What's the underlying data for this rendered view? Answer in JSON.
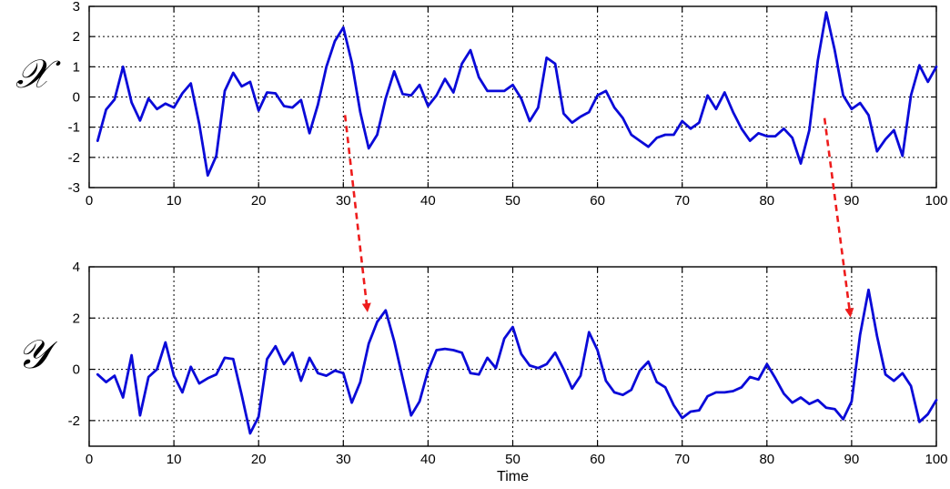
{
  "chart_data": [
    {
      "type": "line",
      "series_label": "𝒳",
      "xlabel": "",
      "ylabel": "",
      "xlim": [
        0,
        100
      ],
      "ylim": [
        -3,
        3
      ],
      "xticks": [
        0,
        10,
        20,
        30,
        40,
        50,
        60,
        70,
        80,
        90,
        100
      ],
      "yticks": [
        -3,
        -2,
        -1,
        0,
        1,
        2,
        3
      ],
      "grid": true,
      "color": "#0a0ad8",
      "x": [
        1,
        2,
        3,
        4,
        5,
        6,
        7,
        8,
        9,
        10,
        11,
        12,
        13,
        14,
        15,
        16,
        17,
        18,
        19,
        20,
        21,
        22,
        23,
        24,
        25,
        26,
        27,
        28,
        29,
        30,
        31,
        32,
        33,
        34,
        35,
        36,
        37,
        38,
        39,
        40,
        41,
        42,
        43,
        44,
        45,
        46,
        47,
        48,
        49,
        50,
        51,
        52,
        53,
        54,
        55,
        56,
        57,
        58,
        59,
        60,
        61,
        62,
        63,
        64,
        65,
        66,
        67,
        68,
        69,
        70,
        71,
        72,
        73,
        74,
        75,
        76,
        77,
        78,
        79,
        80,
        81,
        82,
        83,
        84,
        85,
        86,
        87,
        88,
        89,
        90,
        91,
        92,
        93,
        94,
        95,
        96,
        97,
        98,
        99,
        100
      ],
      "values": [
        -1.45,
        -0.42,
        -0.08,
        1.0,
        -0.18,
        -0.78,
        -0.05,
        -0.4,
        -0.22,
        -0.35,
        0.12,
        0.45,
        -0.9,
        -2.6,
        -1.95,
        0.2,
        0.8,
        0.35,
        0.5,
        -0.45,
        0.15,
        0.12,
        -0.3,
        -0.35,
        -0.1,
        -1.2,
        -0.25,
        1.0,
        1.85,
        2.3,
        1.15,
        -0.5,
        -1.7,
        -1.25,
        -0.05,
        0.85,
        0.1,
        0.05,
        0.4,
        -0.3,
        0.05,
        0.6,
        0.15,
        1.1,
        1.55,
        0.65,
        0.2,
        0.2,
        0.2,
        0.4,
        -0.05,
        -0.8,
        -0.35,
        1.3,
        1.1,
        -0.55,
        -0.85,
        -0.65,
        -0.5,
        0.05,
        0.2,
        -0.35,
        -0.7,
        -1.25,
        -1.45,
        -1.65,
        -1.35,
        -1.25,
        -1.25,
        -0.8,
        -1.05,
        -0.85,
        0.05,
        -0.4,
        0.15,
        -0.5,
        -1.05,
        -1.45,
        -1.2,
        -1.3,
        -1.3,
        -1.05,
        -1.35,
        -2.2,
        -1.1,
        1.2,
        2.8,
        1.55,
        0.05,
        -0.4,
        -0.2,
        -0.6,
        -1.8,
        -1.4,
        -1.1,
        -1.95,
        0.05,
        1.05,
        0.5,
        1.0
      ]
    },
    {
      "type": "line",
      "series_label": "𝒴",
      "xlabel": "Time",
      "ylabel": "",
      "xlim": [
        0,
        100
      ],
      "ylim": [
        -3,
        4
      ],
      "xticks": [
        0,
        10,
        20,
        30,
        40,
        50,
        60,
        70,
        80,
        90,
        100
      ],
      "yticks": [
        -2,
        0,
        2,
        4
      ],
      "grid": true,
      "color": "#0a0ad8",
      "x": [
        1,
        2,
        3,
        4,
        5,
        6,
        7,
        8,
        9,
        10,
        11,
        12,
        13,
        14,
        15,
        16,
        17,
        18,
        19,
        20,
        21,
        22,
        23,
        24,
        25,
        26,
        27,
        28,
        29,
        30,
        31,
        32,
        33,
        34,
        35,
        36,
        37,
        38,
        39,
        40,
        41,
        42,
        43,
        44,
        45,
        46,
        47,
        48,
        49,
        50,
        51,
        52,
        53,
        54,
        55,
        56,
        57,
        58,
        59,
        60,
        61,
        62,
        63,
        64,
        65,
        66,
        67,
        68,
        69,
        70,
        71,
        72,
        73,
        74,
        75,
        76,
        77,
        78,
        79,
        80,
        81,
        82,
        83,
        84,
        85,
        86,
        87,
        88,
        89,
        90,
        91,
        92,
        93,
        94,
        95,
        96,
        97,
        98,
        99,
        100
      ],
      "values": [
        -0.2,
        -0.5,
        -0.25,
        -1.1,
        0.55,
        -1.8,
        -0.3,
        0.0,
        1.05,
        -0.25,
        -0.9,
        0.1,
        -0.55,
        -0.35,
        -0.2,
        0.45,
        0.4,
        -1.0,
        -2.5,
        -1.85,
        0.4,
        0.9,
        0.2,
        0.65,
        -0.45,
        0.45,
        -0.15,
        -0.25,
        -0.05,
        -0.15,
        -1.3,
        -0.5,
        1.0,
        1.85,
        2.3,
        1.1,
        -0.35,
        -1.8,
        -1.25,
        -0.05,
        0.75,
        0.8,
        0.75,
        0.65,
        -0.15,
        -0.2,
        0.45,
        0.05,
        1.2,
        1.65,
        0.6,
        0.15,
        0.05,
        0.2,
        0.65,
        0.0,
        -0.75,
        -0.25,
        1.45,
        0.75,
        -0.45,
        -0.9,
        -1.0,
        -0.8,
        -0.05,
        0.3,
        -0.5,
        -0.7,
        -1.4,
        -1.9,
        -1.65,
        -1.6,
        -1.05,
        -0.9,
        -0.9,
        -0.85,
        -0.7,
        -0.3,
        -0.4,
        0.2,
        -0.35,
        -0.95,
        -1.3,
        -1.1,
        -1.35,
        -1.2,
        -1.5,
        -1.55,
        -1.95,
        -1.25,
        1.35,
        3.1,
        1.3,
        -0.2,
        -0.45,
        -0.15,
        -0.65,
        -2.05,
        -1.75,
        -1.2
      ]
    }
  ],
  "arrows": {
    "color": "#ee1c1c",
    "links": [
      {
        "from": {
          "chart": 0,
          "x": 30.2,
          "y": -0.6
        },
        "to": {
          "chart": 1,
          "x": 32.8,
          "y": 2.4
        }
      },
      {
        "from": {
          "chart": 0,
          "x": 86.8,
          "y": -0.7
        },
        "to": {
          "chart": 1,
          "x": 89.8,
          "y": 2.2
        }
      }
    ]
  }
}
